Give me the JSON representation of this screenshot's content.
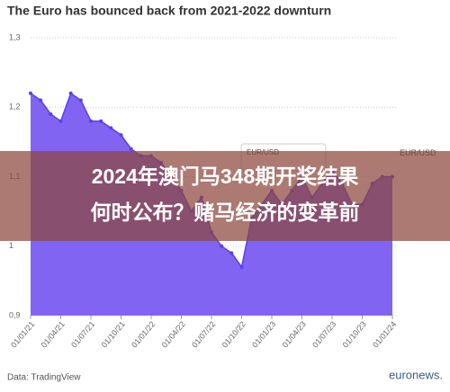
{
  "chart_data": {
    "type": "area",
    "title": "The Euro has bounced back from 2021-2022 downturn",
    "source": "Data: TradingView",
    "logo": "euronews.",
    "tooltip": "EUR/USD",
    "x": [
      "01/01/21",
      "01/02/21",
      "01/03/21",
      "01/04/21",
      "01/05/21",
      "01/06/21",
      "01/07/21",
      "01/08/21",
      "01/09/21",
      "01/10/21",
      "01/11/21",
      "01/12/21",
      "01/01/22",
      "01/02/22",
      "01/03/22",
      "01/04/22",
      "01/05/22",
      "01/06/22",
      "01/07/22",
      "01/08/22",
      "01/09/22",
      "01/10/22",
      "01/11/22",
      "01/12/22",
      "01/01/23",
      "01/02/23",
      "01/03/23",
      "01/04/23",
      "01/05/23",
      "01/06/23",
      "01/07/23",
      "01/08/23",
      "01/09/23",
      "01/10/23",
      "01/11/23",
      "01/12/23",
      "01/01/24"
    ],
    "series": [
      {
        "name": "EUR/USD",
        "color": "#5b3fe6",
        "fill": "#7b5cf2",
        "values": [
          1.22,
          1.21,
          1.19,
          1.18,
          1.22,
          1.21,
          1.18,
          1.18,
          1.17,
          1.16,
          1.14,
          1.13,
          1.13,
          1.12,
          1.1,
          1.08,
          1.05,
          1.07,
          1.02,
          1.0,
          0.99,
          0.97,
          1.04,
          1.06,
          1.08,
          1.06,
          1.08,
          1.1,
          1.07,
          1.09,
          1.11,
          1.09,
          1.06,
          1.06,
          1.09,
          1.1,
          1.1
        ]
      }
    ],
    "xlim": [
      "01/01/21",
      "01/01/24"
    ],
    "xticks": [
      "01/01/21",
      "01/04/21",
      "01/07/21",
      "01/10/21",
      "01/01/22",
      "01/04/22",
      "01/07/22",
      "01/10/22",
      "01/01/23",
      "01/04/23",
      "01/07/23",
      "01/10/23",
      "01/01/24"
    ],
    "ylim": [
      0.9,
      1.3
    ],
    "yticks": [
      {
        "value": 0.9,
        "label": "0,9"
      },
      1,
      {
        "value": 1.1,
        "label": "1,1"
      },
      {
        "value": 1.2,
        "label": "1,2"
      },
      {
        "value": 1.3,
        "label": "1,3"
      }
    ],
    "grid": true
  },
  "overlay": {
    "lines": [
      "2024年澳门马348期开奖结果",
      "何时公布？赌马经济的变革前"
    ]
  }
}
